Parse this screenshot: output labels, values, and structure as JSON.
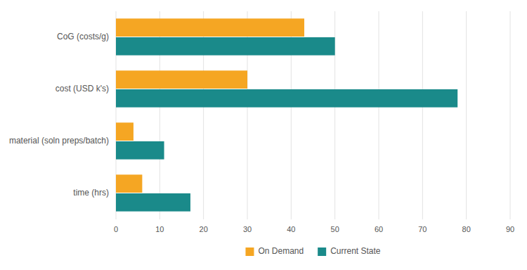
{
  "chart_data": {
    "type": "bar",
    "orientation": "horizontal",
    "categories": [
      "CoG (costs/g)",
      "cost (USD k's)",
      "material (soln preps/batch)",
      "time (hrs)"
    ],
    "series": [
      {
        "name": "On Demand",
        "color": "#F5A623",
        "values": [
          43,
          30,
          4,
          6
        ]
      },
      {
        "name": "Current State",
        "color": "#1A8A8A",
        "values": [
          50,
          78,
          11,
          17
        ]
      }
    ],
    "xlim": [
      0,
      90
    ],
    "xticks": [
      0,
      10,
      20,
      30,
      40,
      50,
      60,
      70,
      80,
      90
    ],
    "grid": true,
    "legend": "bottom"
  }
}
